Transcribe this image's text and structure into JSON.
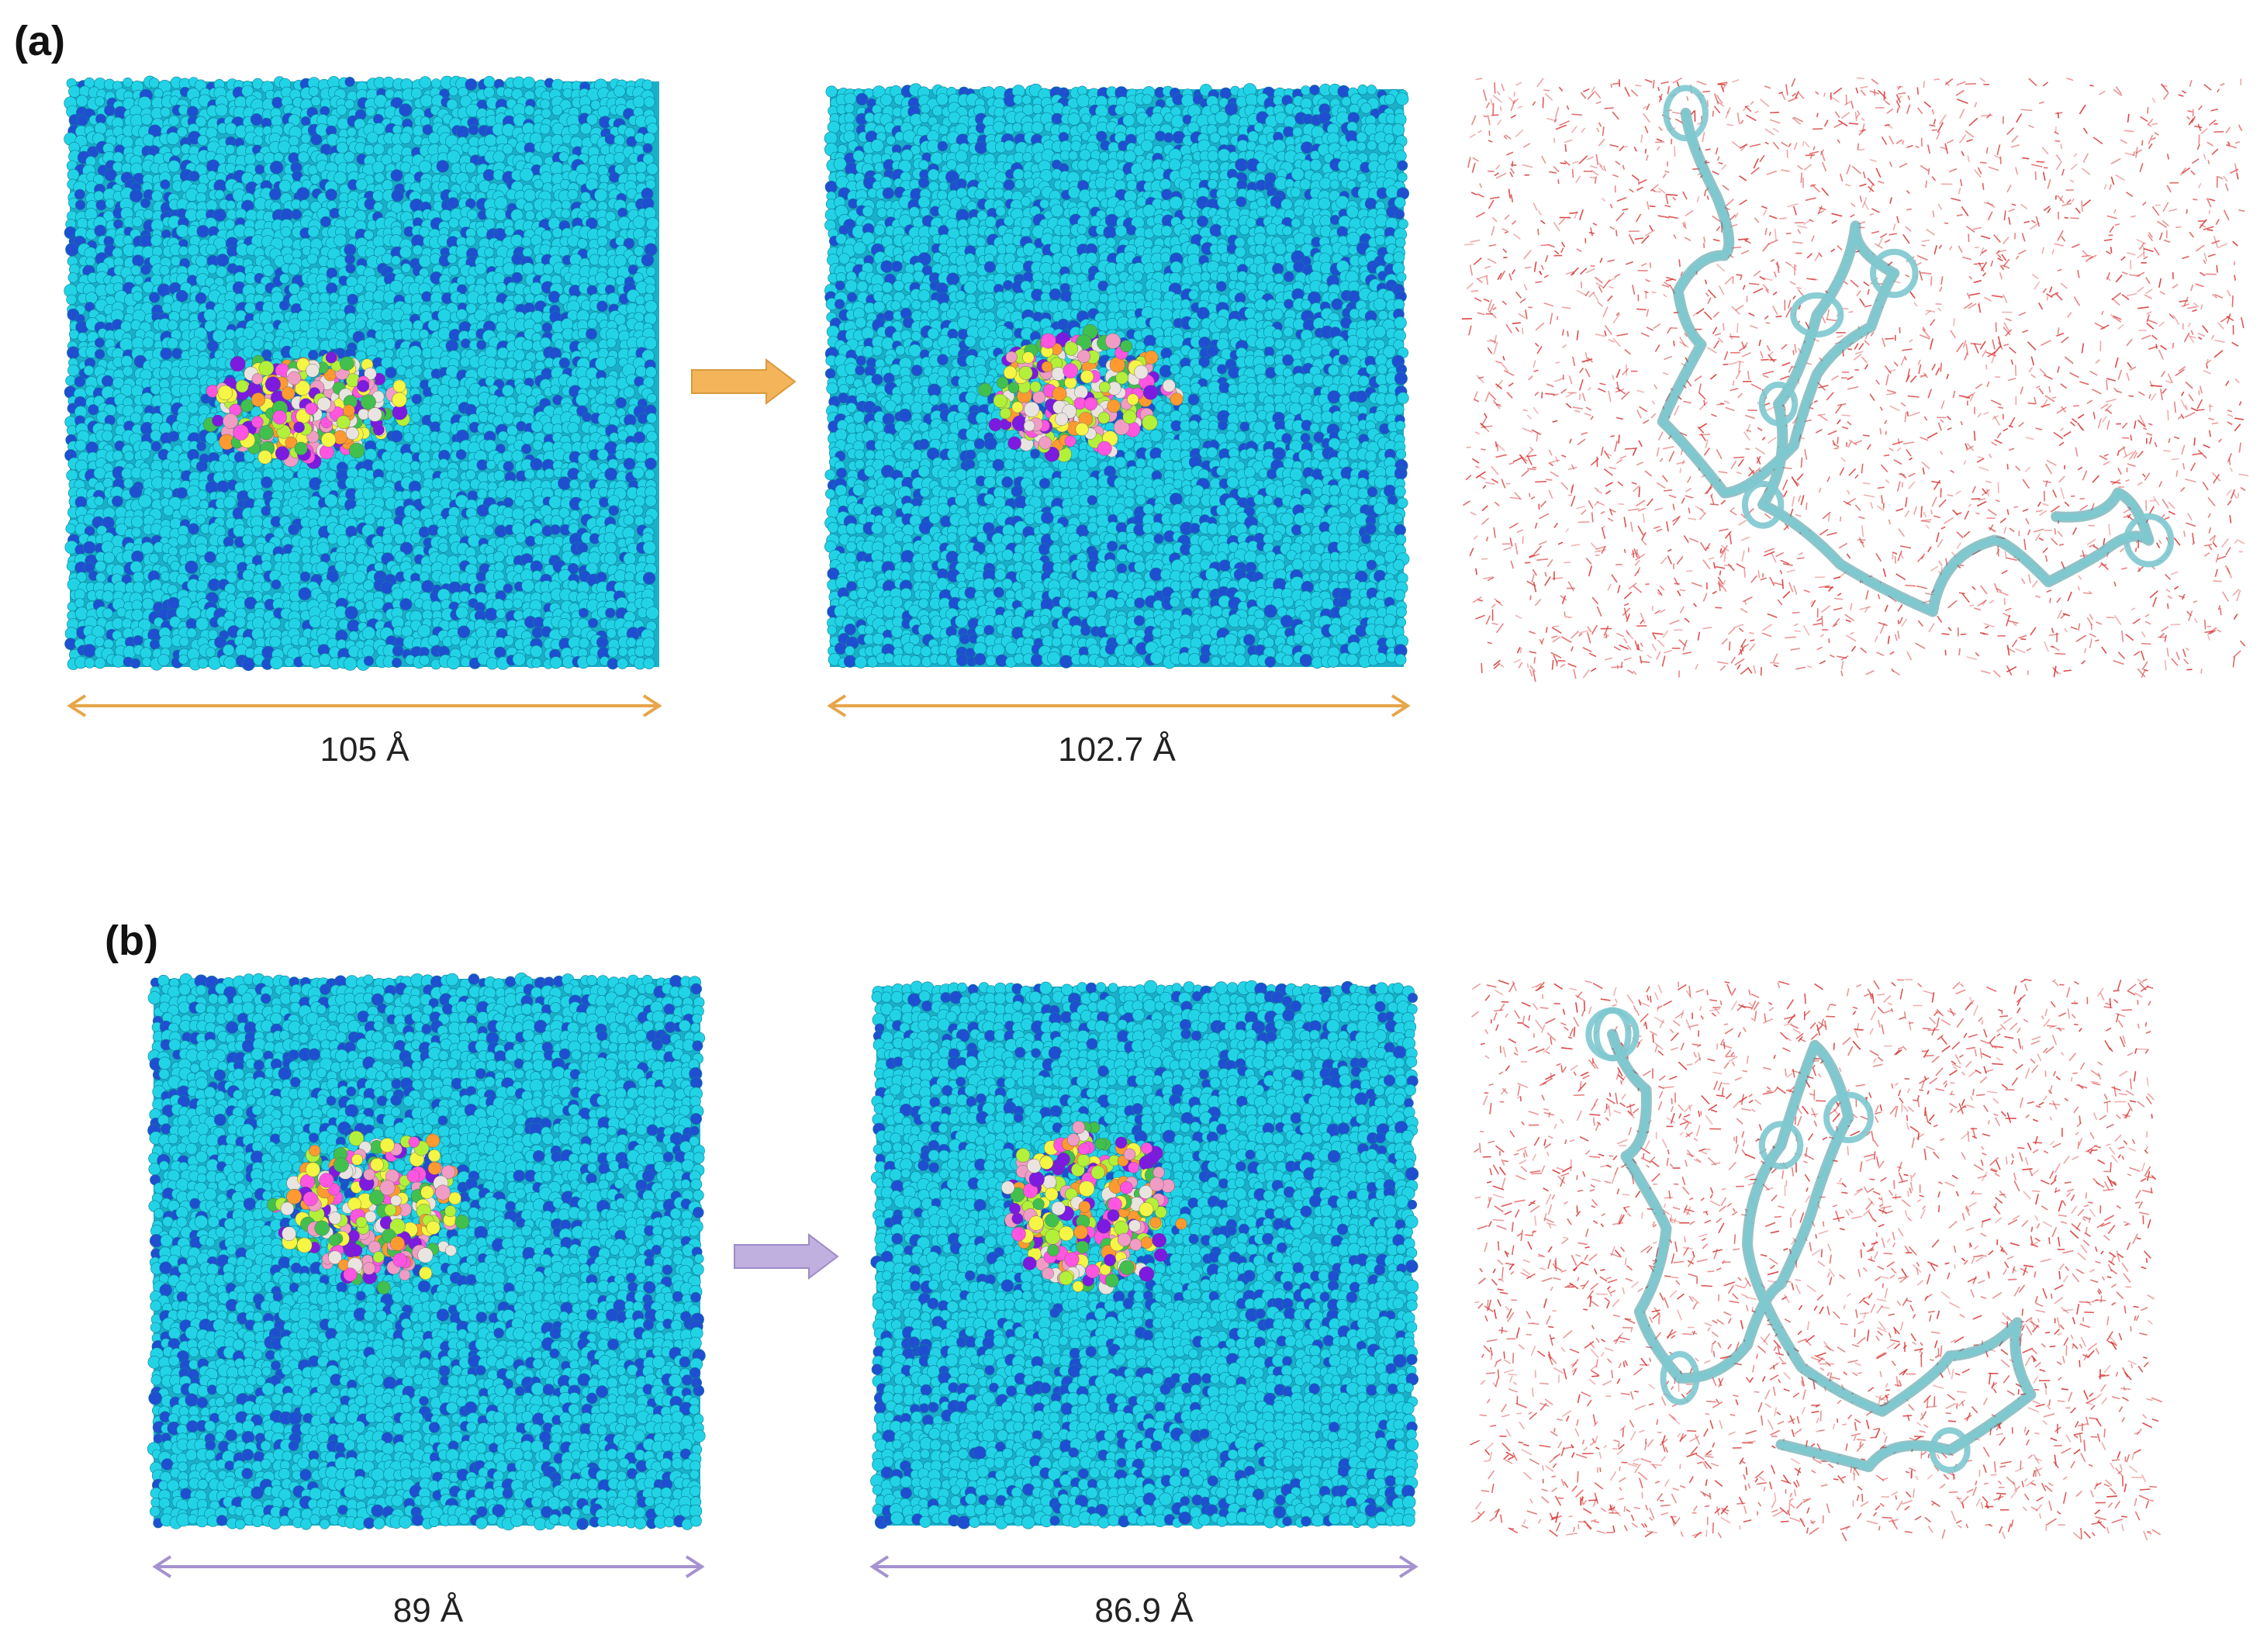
{
  "panels": [
    {
      "label": "(a)",
      "initial_width": "105 Å",
      "final_width": "102.7 Å",
      "accent": "#F1B455"
    },
    {
      "label": "(b)",
      "initial_width": "89 Å",
      "final_width": "86.9 Å",
      "accent": "#B9A9D9"
    }
  ],
  "colors": {
    "solvent_light": "#22D3E6",
    "solvent_dark": "#1F4FD0",
    "water": "#D93A3A",
    "protein_ribbon": "#7EC8CF"
  },
  "icons": {
    "arrow": "right-arrow-icon",
    "dimension": "double-headed-arrow-icon"
  }
}
